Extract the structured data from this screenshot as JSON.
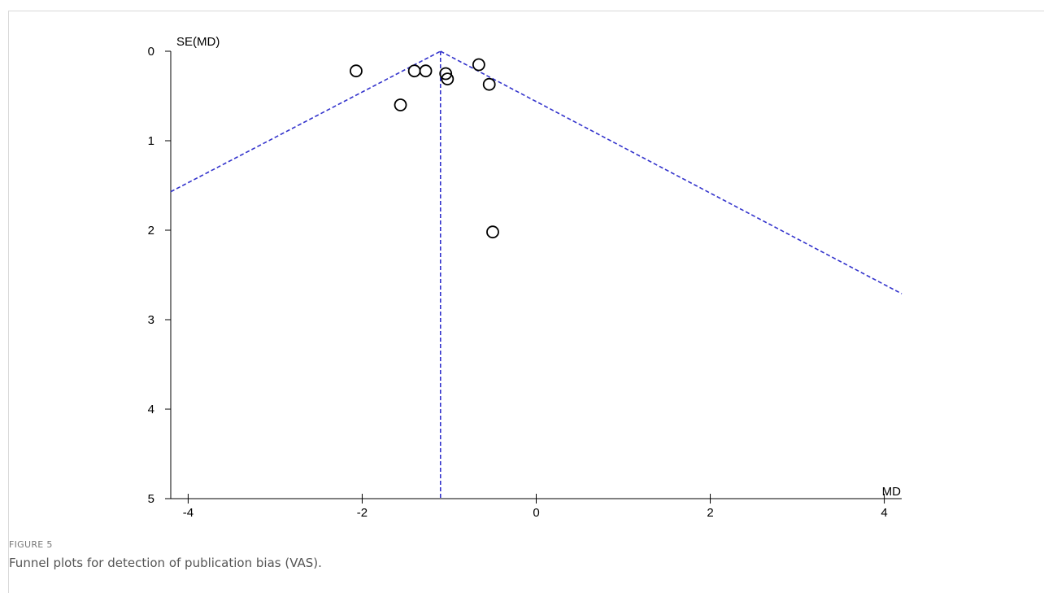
{
  "figure": {
    "label": "FIGURE 5",
    "caption": "Funnel plots for detection of publication bias (VAS)."
  },
  "chart_data": {
    "type": "scatter",
    "xlabel": "MD",
    "ylabel": "SE(MD)",
    "xlim": [
      -4.2,
      4.2
    ],
    "ylim": [
      0,
      5
    ],
    "y_inverted": true,
    "xticks": [
      -4,
      -2,
      0,
      2,
      4
    ],
    "yticks": [
      0,
      1,
      2,
      3,
      4,
      5
    ],
    "points": [
      {
        "x": -2.07,
        "y": 0.22
      },
      {
        "x": -1.4,
        "y": 0.22
      },
      {
        "x": -1.27,
        "y": 0.22
      },
      {
        "x": -1.04,
        "y": 0.25
      },
      {
        "x": -1.02,
        "y": 0.31
      },
      {
        "x": -0.66,
        "y": 0.15
      },
      {
        "x": -0.54,
        "y": 0.37
      },
      {
        "x": -1.56,
        "y": 0.6
      },
      {
        "x": -0.5,
        "y": 2.02
      }
    ],
    "pooled_estimate": -1.1,
    "funnel_lines": [
      {
        "from": [
          -4.2,
          1.57
        ],
        "to": [
          -1.1,
          0
        ]
      },
      {
        "from": [
          -1.1,
          0
        ],
        "to": [
          4.2,
          2.71
        ]
      },
      {
        "from": [
          -1.1,
          0
        ],
        "to": [
          -1.1,
          5
        ]
      }
    ],
    "funnel_color": "#3333cc",
    "marker": "open-circle",
    "grid": false
  }
}
